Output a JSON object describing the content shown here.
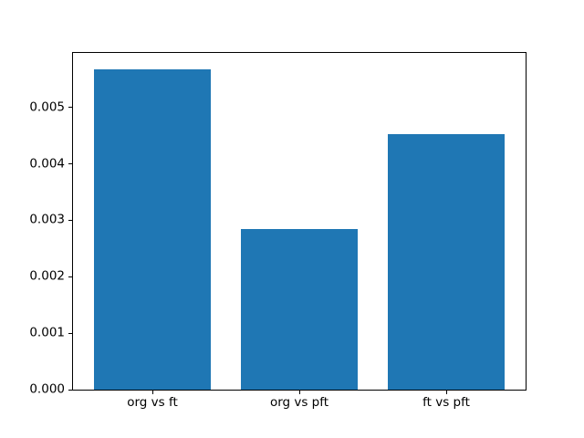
{
  "figure": {
    "background": "#ffffff",
    "spine_color": "#000000"
  },
  "chart_data": {
    "type": "bar",
    "title": "",
    "xlabel": "",
    "ylabel": "",
    "categories": [
      "org vs ft",
      "org vs pft",
      "ft vs pft"
    ],
    "values": [
      0.00568,
      0.00284,
      0.00452
    ],
    "bar_color": "#1f77b4",
    "bar_width": 0.8,
    "xlim": [
      -0.54,
      2.54
    ],
    "ylim": [
      0,
      0.005964
    ],
    "yticks": [
      {
        "value": 0.0,
        "label": "0.000"
      },
      {
        "value": 0.001,
        "label": "0.001"
      },
      {
        "value": 0.002,
        "label": "0.002"
      },
      {
        "value": 0.003,
        "label": "0.003"
      },
      {
        "value": 0.004,
        "label": "0.004"
      },
      {
        "value": 0.005,
        "label": "0.005"
      }
    ],
    "grid": false,
    "legend_position": "none"
  }
}
